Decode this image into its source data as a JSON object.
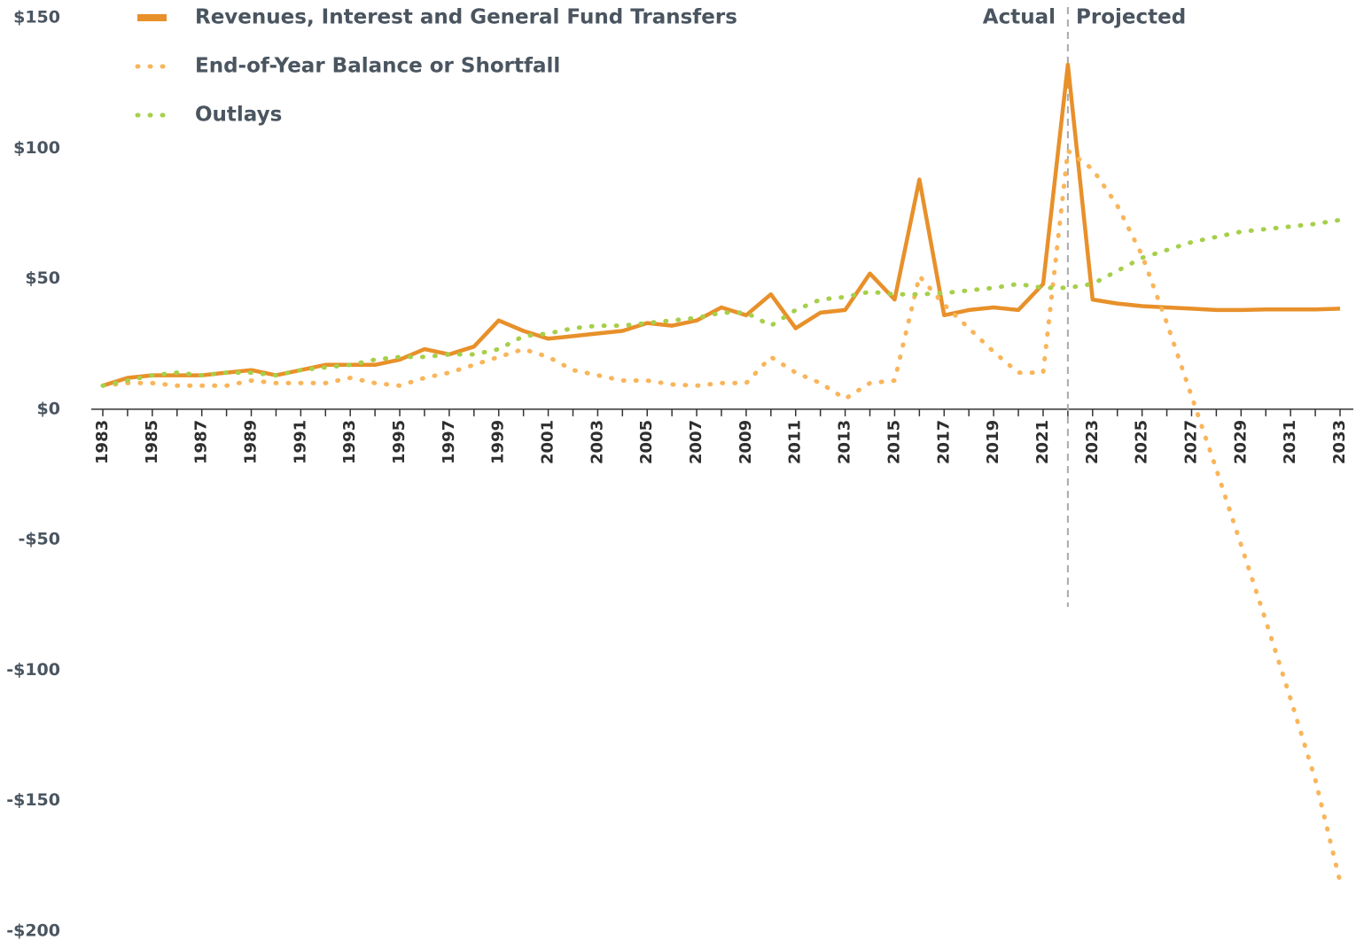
{
  "chart_data": {
    "type": "line",
    "x": [
      1983,
      1984,
      1985,
      1986,
      1987,
      1988,
      1989,
      1990,
      1991,
      1992,
      1993,
      1994,
      1995,
      1996,
      1997,
      1998,
      1999,
      2000,
      2001,
      2002,
      2003,
      2004,
      2005,
      2006,
      2007,
      2008,
      2009,
      2010,
      2011,
      2012,
      2013,
      2014,
      2015,
      2016,
      2017,
      2018,
      2019,
      2020,
      2021,
      2022,
      2023,
      2024,
      2025,
      2026,
      2027,
      2028,
      2029,
      2030,
      2031,
      2032,
      2033
    ],
    "xlim": [
      1983,
      2033
    ],
    "xticks": [
      1983,
      1985,
      1987,
      1989,
      1991,
      1993,
      1995,
      1997,
      1999,
      2001,
      2003,
      2005,
      2007,
      2009,
      2011,
      2013,
      2015,
      2017,
      2019,
      2021,
      2023,
      2025,
      2027,
      2029,
      2031,
      2033
    ],
    "xminor_ticks": [
      1983,
      1984,
      1985,
      1986,
      1987,
      1988,
      1989,
      1990,
      1991,
      1992,
      1993,
      1994,
      1995,
      1996,
      1997,
      1998,
      1999,
      2000,
      2001,
      2002,
      2003,
      2004,
      2005,
      2006,
      2007,
      2008,
      2009,
      2010,
      2011,
      2012,
      2013,
      2014,
      2015,
      2016,
      2017,
      2018,
      2019,
      2020,
      2021,
      2022,
      2023,
      2024,
      2025,
      2026,
      2027,
      2028,
      2029,
      2030,
      2031,
      2032,
      2033
    ],
    "ylim": [
      -200,
      150
    ],
    "yticks": [
      {
        "value": 150,
        "label": "$150"
      },
      {
        "value": 100,
        "label": "$100"
      },
      {
        "value": 50,
        "label": "$50"
      },
      {
        "value": 0,
        "label": "$0"
      },
      {
        "value": -50,
        "label": "-$50"
      },
      {
        "value": -100,
        "label": "-$100"
      },
      {
        "value": -150,
        "label": "-$150"
      },
      {
        "value": -200,
        "label": "-$200"
      }
    ],
    "divider_x": 2022,
    "annotations": [
      "Actual",
      "Projected"
    ],
    "series": [
      {
        "name": "Revenues, Interest and General Fund Transfers",
        "color": "#e8902a",
        "style": "solid",
        "values": [
          9,
          12,
          13,
          13,
          13,
          14,
          15,
          13,
          15,
          17,
          17,
          17,
          19,
          23,
          21,
          24,
          34,
          30,
          27,
          28,
          29,
          30,
          33,
          32,
          34,
          39,
          36,
          44,
          31,
          37,
          38,
          52,
          42,
          88,
          36,
          38,
          39,
          38,
          48,
          132,
          42,
          40.5,
          39.5,
          39,
          38.5,
          38,
          38,
          38.2,
          38.2,
          38.2,
          38.5
        ]
      },
      {
        "name": "End-of-Year Balance or Shortfall",
        "color": "#f9b55a",
        "style": "dashed",
        "values": [
          9,
          10,
          10,
          9,
          9,
          9,
          11,
          10,
          10,
          10,
          12,
          10,
          9,
          12,
          14,
          17,
          20,
          23,
          20,
          15,
          13,
          11,
          11,
          9.5,
          9,
          10,
          10,
          20,
          14,
          10,
          4,
          10,
          11,
          51,
          40,
          31,
          22,
          14,
          14,
          99,
          92,
          78,
          59,
          33,
          5,
          -23,
          -52,
          -81,
          -111,
          -142,
          -181
        ]
      },
      {
        "name": "Outlays",
        "color": "#a6cf4a",
        "style": "dashed",
        "values": [
          9,
          11,
          13,
          14,
          13,
          14,
          14,
          13,
          15,
          16,
          17,
          19,
          20,
          20,
          21,
          21,
          23,
          28,
          29,
          31,
          32,
          32,
          33,
          34,
          35,
          37,
          37,
          32,
          38,
          42,
          43,
          45,
          44,
          44,
          44.5,
          45.5,
          46.5,
          48,
          46.5,
          46.5,
          48,
          53,
          58,
          61,
          64,
          66,
          68,
          69,
          70,
          71,
          72.5
        ]
      }
    ]
  }
}
